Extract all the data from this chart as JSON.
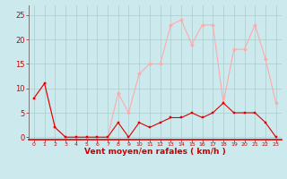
{
  "x": [
    0,
    1,
    2,
    3,
    4,
    5,
    6,
    7,
    8,
    9,
    10,
    11,
    12,
    13,
    14,
    15,
    16,
    17,
    18,
    19,
    20,
    21,
    22,
    23
  ],
  "wind_mean": [
    8,
    11,
    2,
    0,
    0,
    0,
    0,
    0,
    3,
    0,
    3,
    2,
    3,
    4,
    4,
    5,
    4,
    5,
    7,
    5,
    5,
    5,
    3,
    0
  ],
  "wind_gust": [
    8,
    11,
    2,
    0,
    0,
    0,
    0,
    0,
    9,
    5,
    13,
    15,
    15,
    23,
    24,
    19,
    23,
    23,
    7,
    18,
    18,
    23,
    16,
    7
  ],
  "bg_color": "#cce9ee",
  "grid_color": "#aacccc",
  "line_color_mean": "#dd0000",
  "line_color_gust": "#ffaaaa",
  "xlabel": "Vent moyen/en rafales ( km/h )",
  "xlabel_color": "#cc0000",
  "tick_color": "#cc0000",
  "ylim": [
    -0.5,
    27
  ],
  "yticks": [
    0,
    5,
    10,
    15,
    20,
    25
  ],
  "xlim": [
    -0.5,
    23.5
  ]
}
